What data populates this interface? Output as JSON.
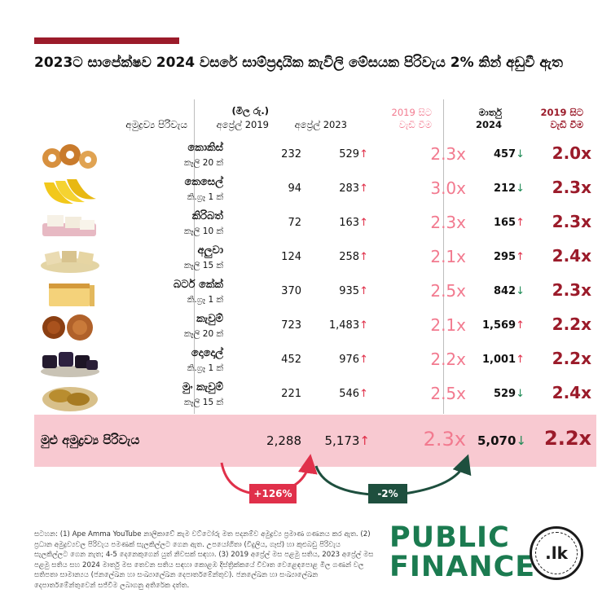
{
  "title": "2023ට සාපේක්ෂව 2024 වසරේ සාම්ප්‍රදායික කැවිලි මේසයක පිරිවැය 2% කින් අඩුවී ඇත",
  "headers": {
    "items": "අමුද්‍රව්‍ය පිරිවැය",
    "unit": "(මිල රු.)",
    "apr2019": "අප්‍රේල් 2019",
    "apr2023": "අප්‍රේල් 2023",
    "growth2019_line1": "2019 සිට",
    "growth2019_line2": "වැඩි වීම",
    "mar2024_line1": "මාර්තු",
    "mar2024_line2": "2024",
    "growth2024_line1": "2019 සිට",
    "growth2024_line2": "වැඩි වීම"
  },
  "rows": [
    {
      "name": "කොකිස්",
      "unit": "කෑලි 20 ක්",
      "p2019": "232",
      "p2023": "529",
      "t2023": "↑",
      "r2023": "2.3x",
      "p2024": "457",
      "t2024": "↓",
      "r2024": "2.0x",
      "icon": "kokis-icon"
    },
    {
      "name": "කෙසෙල්",
      "unit": "කි.ග්‍රෑ 1 ක්",
      "p2019": "94",
      "p2023": "283",
      "t2023": "↑",
      "r2023": "3.0x",
      "p2024": "212",
      "t2024": "↓",
      "r2024": "2.3x",
      "icon": "banana-icon"
    },
    {
      "name": "කිරිබත්",
      "unit": "කෑලි 10 ක්",
      "p2019": "72",
      "p2023": "163",
      "t2023": "↑",
      "r2023": "2.3x",
      "p2024": "165",
      "t2024": "↑",
      "r2024": "2.3x",
      "icon": "kiribath-icon"
    },
    {
      "name": "අලුවා",
      "unit": "කෑලි 15 ක්",
      "p2019": "124",
      "p2023": "258",
      "t2023": "↑",
      "r2023": "2.1x",
      "p2024": "295",
      "t2024": "↑",
      "r2024": "2.4x",
      "icon": "aluwa-icon"
    },
    {
      "name": "බටර් කේක්",
      "unit": "කි.ග්‍රෑ 1 ක්",
      "p2019": "370",
      "p2023": "935",
      "t2023": "↑",
      "r2023": "2.5x",
      "p2024": "842",
      "t2024": "↓",
      "r2024": "2.3x",
      "icon": "butter-cake-icon"
    },
    {
      "name": "කැවුම්",
      "unit": "කෑලි 20 ක්",
      "p2019": "723",
      "p2023": "1,483",
      "t2023": "↑",
      "r2023": "2.1x",
      "p2024": "1,569",
      "t2024": "↑",
      "r2024": "2.2x",
      "icon": "kavum-icon"
    },
    {
      "name": "දොදොල්",
      "unit": "කි.ග්‍රෑ 1 ක්",
      "p2019": "452",
      "p2023": "976",
      "t2023": "↑",
      "r2023": "2.2x",
      "p2024": "1,001",
      "t2024": "↑",
      "r2024": "2.2x",
      "icon": "dodol-icon"
    },
    {
      "name": "මුං කැවුම්",
      "unit": "කෑලි 15 ක්",
      "p2019": "221",
      "p2023": "546",
      "t2023": "↑",
      "r2023": "2.5x",
      "p2024": "529",
      "t2024": "↓",
      "r2024": "2.4x",
      "icon": "mung-kavum-icon"
    }
  ],
  "total": {
    "label": "මුළු අමුද්‍රව්‍ය පිරිවැය",
    "p2019": "2,288",
    "p2023": "5,173",
    "t2023": "↑",
    "r2023": "2.3x",
    "p2024": "5,070",
    "t2024": "↓",
    "r2024": "2.2x"
  },
  "changes": {
    "apr2019_to_apr2023": "+126%",
    "apr2023_to_mar2024": "-2%"
  },
  "note": "සටහන: (1) Ape Amma YouTube නාලිකාවේ කැම වට්ටෝරු මත පදනම්ව අමුද්‍රව්‍ය ප්‍රමාණ ගණනය කර ඇත. (2) ප්‍රධාන අමුද්‍රව්‍යවල පිරිවැය පමණක් සැලකිල්ලට ගෙන ඇත. උපයෝගිතා (විදුලිය, ගෑස්) හා කුළුබඩු පිරිවැය සැලකිල්ලට ගෙන නැත; 4-5 දෙනෙකුගෙන් යුත් නිවසක් සඳහා. (3) 2019 අප්‍රේල් මස පළමු සතිය, 2023 අප්‍රේල් මස පළමු සතිය සහ 2024 මාර්තු මස තෙවන සතිය සඳහා කොළඹ දිස්ත්‍රික්කයේ විවෘත වෙළෙඳපොළ මිල ගණන් වල සතිපතා සාමාන්‍යය (ජනලේඛන හා සංඛ්‍යාලේඛන දෙපාර්තමේන්තුව). ජනලේඛන හා සංඛ්‍යාලේඛන දෙපාර්තමේන්තුවෙන් සජ්වීම ලබාගනු අතිරේක දත්ත.",
  "brand": {
    "line1": "PUBLIC",
    "line2": "FINANCE",
    "seal": ".lk"
  },
  "colors": {
    "accent": "#9b1b2a",
    "ratio_light": "#f27a8f",
    "up": "#e0304a",
    "down": "#1f8a55",
    "total_bg": "#f8c9d1",
    "brand_green": "#1b7b50"
  }
}
